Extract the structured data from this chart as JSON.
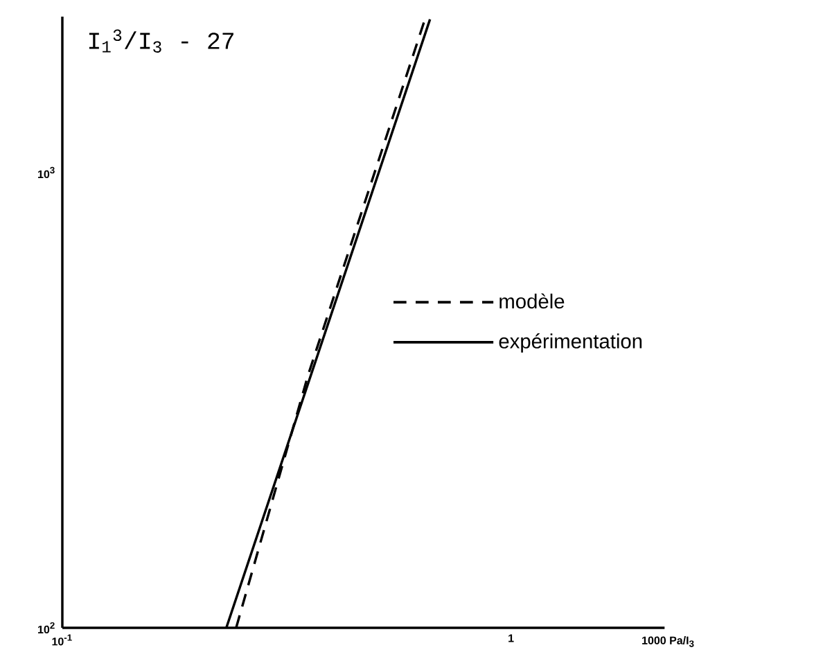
{
  "chart_data": {
    "type": "line",
    "log": "xy",
    "xlabel": "1000 Pa/I$_{3}$",
    "ylabel": "I$_{1}$$^{3}$/I$_{3}$ - 27",
    "xlim": [
      0.1,
      2.2
    ],
    "ylim": [
      100,
      2200
    ],
    "xticks": [
      {
        "value": 0.1,
        "label": "10$^{-1}$"
      },
      1
    ],
    "yticks": [
      {
        "value": 100,
        "label": "10$^{2}$"
      },
      {
        "value": 1000,
        "label": "10$^{3}$"
      }
    ],
    "legend": "right",
    "series": [
      {
        "name": "modèle",
        "color": "#000000",
        "line_style": "dashed",
        "x": [
          0.244,
          0.353,
          0.643
        ],
        "values": [
          100,
          359,
          2170
        ]
      },
      {
        "name": "expérimentation",
        "color": "#000000",
        "line_style": "solid",
        "x": [
          0.232,
          0.66
        ],
        "values": [
          100,
          2170
        ]
      }
    ]
  }
}
